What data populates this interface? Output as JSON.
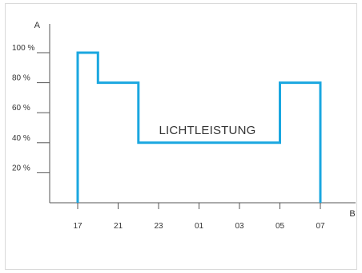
{
  "chart_data": {
    "type": "line",
    "title": "",
    "xlabel": "B",
    "ylabel": "A",
    "x_ticks": [
      "17",
      "21",
      "23",
      "01",
      "03",
      "05",
      "07"
    ],
    "y_ticks": [
      "20 %",
      "40 %",
      "60 %",
      "80 %",
      "100 %"
    ],
    "ylim": [
      0,
      100
    ],
    "grid": false,
    "annotation": "LICHTLEISTUNG",
    "series": [
      {
        "color": "#1aa7e0",
        "points": [
          {
            "x": "17",
            "y": 0
          },
          {
            "x": "17",
            "y": 100
          },
          {
            "x": "19",
            "y": 100
          },
          {
            "x": "19",
            "y": 80
          },
          {
            "x": "22",
            "y": 80
          },
          {
            "x": "22",
            "y": 40
          },
          {
            "x": "05",
            "y": 40
          },
          {
            "x": "05",
            "y": 80
          },
          {
            "x": "07",
            "y": 80
          },
          {
            "x": "07",
            "y": 0
          }
        ]
      }
    ]
  }
}
